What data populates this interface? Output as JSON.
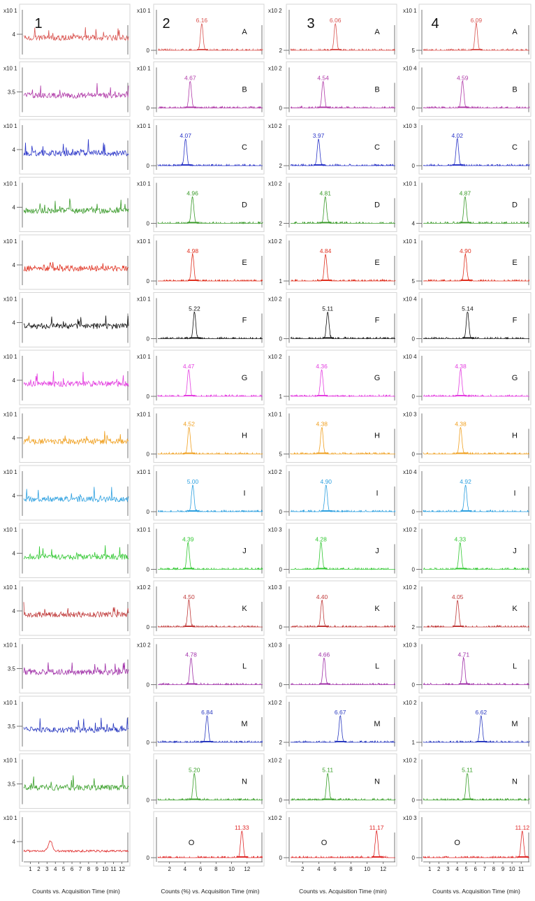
{
  "figure": {
    "column_labels": [
      "1",
      "2",
      "3",
      "4"
    ],
    "row_labels": [
      "A",
      "B",
      "C",
      "D",
      "E",
      "F",
      "G",
      "H",
      "I",
      "J",
      "K",
      "L",
      "M",
      "N",
      "O"
    ],
    "row_colors": [
      "#d9534f",
      "#b03aa8",
      "#2a35c8",
      "#3a9a2a",
      "#e0301f",
      "#111111",
      "#e43fe0",
      "#f0a020",
      "#2da0e0",
      "#32c832",
      "#c03a3a",
      "#a030a8",
      "#2a3ac0",
      "#3aa02a",
      "#e02a2a"
    ],
    "x_axis_labels": [
      "Counts vs. Acquisition Time (min)",
      "Counts (%) vs. Acquisition Time (min)",
      "Counts vs. Acquisition Time (min)",
      "Counts vs. Acquisition Time (min)"
    ]
  },
  "chart_data": [
    {
      "type": "line",
      "column": "1",
      "title": "",
      "xlabel": "Counts vs. Acquisition Time (min)",
      "xlim": [
        0.2,
        12.8
      ],
      "x_ticks": [
        "1",
        "2",
        "3",
        "4",
        "5",
        "6",
        "7",
        "8",
        "9",
        "10",
        "11",
        "12"
      ],
      "panels": [
        {
          "row": "A",
          "multiplier": "x10 1",
          "y_tick": "4",
          "peaks": []
        },
        {
          "row": "B",
          "multiplier": "x10 1",
          "y_tick": "3.5",
          "peaks": []
        },
        {
          "row": "C",
          "multiplier": "x10 1",
          "y_tick": "4",
          "peaks": []
        },
        {
          "row": "D",
          "multiplier": "x10 1",
          "y_tick": "4",
          "peaks": []
        },
        {
          "row": "E",
          "multiplier": "x10 1",
          "y_tick": "4",
          "peaks": []
        },
        {
          "row": "F",
          "multiplier": "x10 1",
          "y_tick": "4",
          "peaks": []
        },
        {
          "row": "G",
          "multiplier": "x10 1",
          "y_tick": "4",
          "peaks": []
        },
        {
          "row": "H",
          "multiplier": "x10 1",
          "y_tick": "4",
          "peaks": []
        },
        {
          "row": "I",
          "multiplier": "x10 1",
          "y_tick": "4",
          "peaks": []
        },
        {
          "row": "J",
          "multiplier": "x10 1",
          "y_tick": "4",
          "peaks": []
        },
        {
          "row": "K",
          "multiplier": "x10 1",
          "y_tick": "4",
          "peaks": []
        },
        {
          "row": "L",
          "multiplier": "x10 1",
          "y_tick": "3.5",
          "peaks": []
        },
        {
          "row": "M",
          "multiplier": "x10 1",
          "y_tick": "3.5",
          "peaks": []
        },
        {
          "row": "N",
          "multiplier": "x10 1",
          "y_tick": "3.5",
          "peaks": []
        },
        {
          "row": "O",
          "multiplier": "x10 1",
          "y_tick": "4",
          "peaks": []
        }
      ]
    },
    {
      "type": "line",
      "column": "2",
      "title": "",
      "xlabel": "Counts (%) vs. Acquisition Time (min)",
      "xlim": [
        0.5,
        14
      ],
      "x_ticks": [
        "2",
        "4",
        "6",
        "8",
        "10",
        "12"
      ],
      "panels": [
        {
          "row": "A",
          "multiplier": "x10 1",
          "y_tick": "0",
          "peaks": [
            {
              "rt": 6.16,
              "label": "6.16"
            }
          ]
        },
        {
          "row": "B",
          "multiplier": "x10 1",
          "y_tick": "0",
          "peaks": [
            {
              "rt": 4.67,
              "label": "4.67"
            }
          ]
        },
        {
          "row": "C",
          "multiplier": "x10 1",
          "y_tick": "0",
          "peaks": [
            {
              "rt": 4.07,
              "label": "4.07"
            }
          ]
        },
        {
          "row": "D",
          "multiplier": "x10 1",
          "y_tick": "0",
          "peaks": [
            {
              "rt": 4.96,
              "label": "4.96"
            }
          ]
        },
        {
          "row": "E",
          "multiplier": "x10 1",
          "y_tick": "0",
          "peaks": [
            {
              "rt": 4.98,
              "label": "4.98"
            }
          ]
        },
        {
          "row": "F",
          "multiplier": "x10 1",
          "y_tick": "0",
          "peaks": [
            {
              "rt": 5.22,
              "label": "5.22"
            }
          ]
        },
        {
          "row": "G",
          "multiplier": "x10 1",
          "y_tick": "0",
          "peaks": [
            {
              "rt": 4.47,
              "label": "4.47"
            }
          ]
        },
        {
          "row": "H",
          "multiplier": "x10 1",
          "y_tick": "0",
          "peaks": [
            {
              "rt": 4.52,
              "label": "4.52"
            }
          ]
        },
        {
          "row": "I",
          "multiplier": "x10 1",
          "y_tick": "0",
          "peaks": [
            {
              "rt": 5.0,
              "label": "5.00"
            }
          ]
        },
        {
          "row": "J",
          "multiplier": "x10 1",
          "y_tick": "0",
          "peaks": [
            {
              "rt": 4.39,
              "label": "4.39"
            }
          ]
        },
        {
          "row": "K",
          "multiplier": "x10 2",
          "y_tick": "0",
          "peaks": [
            {
              "rt": 4.5,
              "label": "4.50"
            }
          ]
        },
        {
          "row": "L",
          "multiplier": "x10 2",
          "y_tick": "0",
          "peaks": [
            {
              "rt": 4.78,
              "label": "4.78"
            }
          ]
        },
        {
          "row": "M",
          "multiplier": "",
          "y_tick": "0",
          "peaks": [
            {
              "rt": 6.84,
              "label": "6.84"
            }
          ]
        },
        {
          "row": "N",
          "multiplier": "",
          "y_tick": "0",
          "peaks": [
            {
              "rt": 5.2,
              "label": "5.20"
            }
          ]
        },
        {
          "row": "O",
          "multiplier": "",
          "y_tick": "0",
          "peaks": [
            {
              "rt": 11.33,
              "label": "11.33"
            }
          ]
        }
      ]
    },
    {
      "type": "line",
      "column": "3",
      "title": "",
      "xlabel": "Counts vs. Acquisition Time (min)",
      "xlim": [
        0.5,
        13.5
      ],
      "x_ticks": [
        "2",
        "4",
        "6",
        "8",
        "10",
        "12"
      ],
      "panels": [
        {
          "row": "A",
          "multiplier": "x10 2",
          "y_tick": "2",
          "peaks": [
            {
              "rt": 6.06,
              "label": "6.06"
            }
          ]
        },
        {
          "row": "B",
          "multiplier": "x10 2",
          "y_tick": "0",
          "peaks": [
            {
              "rt": 4.54,
              "label": "4.54"
            }
          ]
        },
        {
          "row": "C",
          "multiplier": "x10 2",
          "y_tick": "2",
          "peaks": [
            {
              "rt": 3.97,
              "label": "3.97"
            }
          ]
        },
        {
          "row": "D",
          "multiplier": "x10 2",
          "y_tick": "2",
          "peaks": [
            {
              "rt": 4.81,
              "label": "4.81"
            }
          ]
        },
        {
          "row": "E",
          "multiplier": "x10 2",
          "y_tick": "1",
          "peaks": [
            {
              "rt": 4.84,
              "label": "4.84"
            }
          ]
        },
        {
          "row": "F",
          "multiplier": "x10 2",
          "y_tick": "0",
          "peaks": [
            {
              "rt": 5.11,
              "label": "5.11"
            }
          ]
        },
        {
          "row": "G",
          "multiplier": "x10 2",
          "y_tick": "1",
          "peaks": [
            {
              "rt": 4.36,
              "label": "4.36"
            }
          ]
        },
        {
          "row": "H",
          "multiplier": "x10 1",
          "y_tick": "5",
          "peaks": [
            {
              "rt": 4.38,
              "label": "4.38"
            }
          ]
        },
        {
          "row": "I",
          "multiplier": "x10 2",
          "y_tick": "0",
          "peaks": [
            {
              "rt": 4.9,
              "label": "4.90"
            }
          ]
        },
        {
          "row": "J",
          "multiplier": "x10 3",
          "y_tick": "0",
          "peaks": [
            {
              "rt": 4.28,
              "label": "4.28"
            }
          ]
        },
        {
          "row": "K",
          "multiplier": "x10 3",
          "y_tick": "0",
          "peaks": [
            {
              "rt": 4.4,
              "label": "4.40"
            }
          ]
        },
        {
          "row": "L",
          "multiplier": "x10 3",
          "y_tick": "0",
          "peaks": [
            {
              "rt": 4.66,
              "label": "4.66"
            }
          ]
        },
        {
          "row": "M",
          "multiplier": "x10 2",
          "y_tick": "2",
          "peaks": [
            {
              "rt": 6.67,
              "label": "6.67"
            }
          ]
        },
        {
          "row": "N",
          "multiplier": "x10 2",
          "y_tick": "0",
          "peaks": [
            {
              "rt": 5.11,
              "label": "5.11"
            }
          ]
        },
        {
          "row": "O",
          "multiplier": "x10 2",
          "y_tick": "0",
          "peaks": [
            {
              "rt": 11.17,
              "label": "11.17"
            }
          ]
        }
      ]
    },
    {
      "type": "line",
      "column": "4",
      "title": "",
      "xlabel": "Counts vs. Acquisition Time (min)",
      "xlim": [
        0.3,
        11.9
      ],
      "x_ticks": [
        "1",
        "2",
        "3",
        "4",
        "5",
        "6",
        "7",
        "8",
        "9",
        "10",
        "11"
      ],
      "panels": [
        {
          "row": "A",
          "multiplier": "x10 1",
          "y_tick": "5",
          "peaks": [
            {
              "rt": 6.09,
              "label": "6.09"
            }
          ]
        },
        {
          "row": "B",
          "multiplier": "x10 4",
          "y_tick": "0",
          "peaks": [
            {
              "rt": 4.59,
              "label": "4.59"
            }
          ]
        },
        {
          "row": "C",
          "multiplier": "x10 3",
          "y_tick": "0",
          "peaks": [
            {
              "rt": 4.02,
              "label": "4.02"
            }
          ]
        },
        {
          "row": "D",
          "multiplier": "x10 1",
          "y_tick": "4",
          "peaks": [
            {
              "rt": 4.87,
              "label": "4.87"
            }
          ]
        },
        {
          "row": "E",
          "multiplier": "x10 1",
          "y_tick": "5",
          "peaks": [
            {
              "rt": 4.9,
              "label": "4.90"
            }
          ]
        },
        {
          "row": "F",
          "multiplier": "x10 4",
          "y_tick": "0",
          "peaks": [
            {
              "rt": 5.14,
              "label": "5.14"
            }
          ]
        },
        {
          "row": "G",
          "multiplier": "x10 4",
          "y_tick": "0",
          "peaks": [
            {
              "rt": 4.38,
              "label": "4.38"
            }
          ]
        },
        {
          "row": "H",
          "multiplier": "x10 3",
          "y_tick": "0",
          "peaks": [
            {
              "rt": 4.38,
              "label": "4.38"
            }
          ]
        },
        {
          "row": "I",
          "multiplier": "x10 4",
          "y_tick": "0",
          "peaks": [
            {
              "rt": 4.92,
              "label": "4.92"
            }
          ]
        },
        {
          "row": "J",
          "multiplier": "x10 2",
          "y_tick": "0",
          "peaks": [
            {
              "rt": 4.33,
              "label": "4.33"
            }
          ]
        },
        {
          "row": "K",
          "multiplier": "x10 2",
          "y_tick": "2",
          "peaks": [
            {
              "rt": 4.05,
              "label": "4.05"
            }
          ]
        },
        {
          "row": "L",
          "multiplier": "x10 3",
          "y_tick": "0",
          "peaks": [
            {
              "rt": 4.71,
              "label": "4.71"
            }
          ]
        },
        {
          "row": "M",
          "multiplier": "x10 2",
          "y_tick": "1",
          "peaks": [
            {
              "rt": 6.62,
              "label": "6.62"
            }
          ]
        },
        {
          "row": "N",
          "multiplier": "x10 2",
          "y_tick": "0",
          "peaks": [
            {
              "rt": 5.11,
              "label": "5.11"
            }
          ]
        },
        {
          "row": "O",
          "multiplier": "x10 3",
          "y_tick": "0",
          "peaks": [
            {
              "rt": 11.12,
              "label": "11.12"
            }
          ]
        }
      ]
    }
  ]
}
